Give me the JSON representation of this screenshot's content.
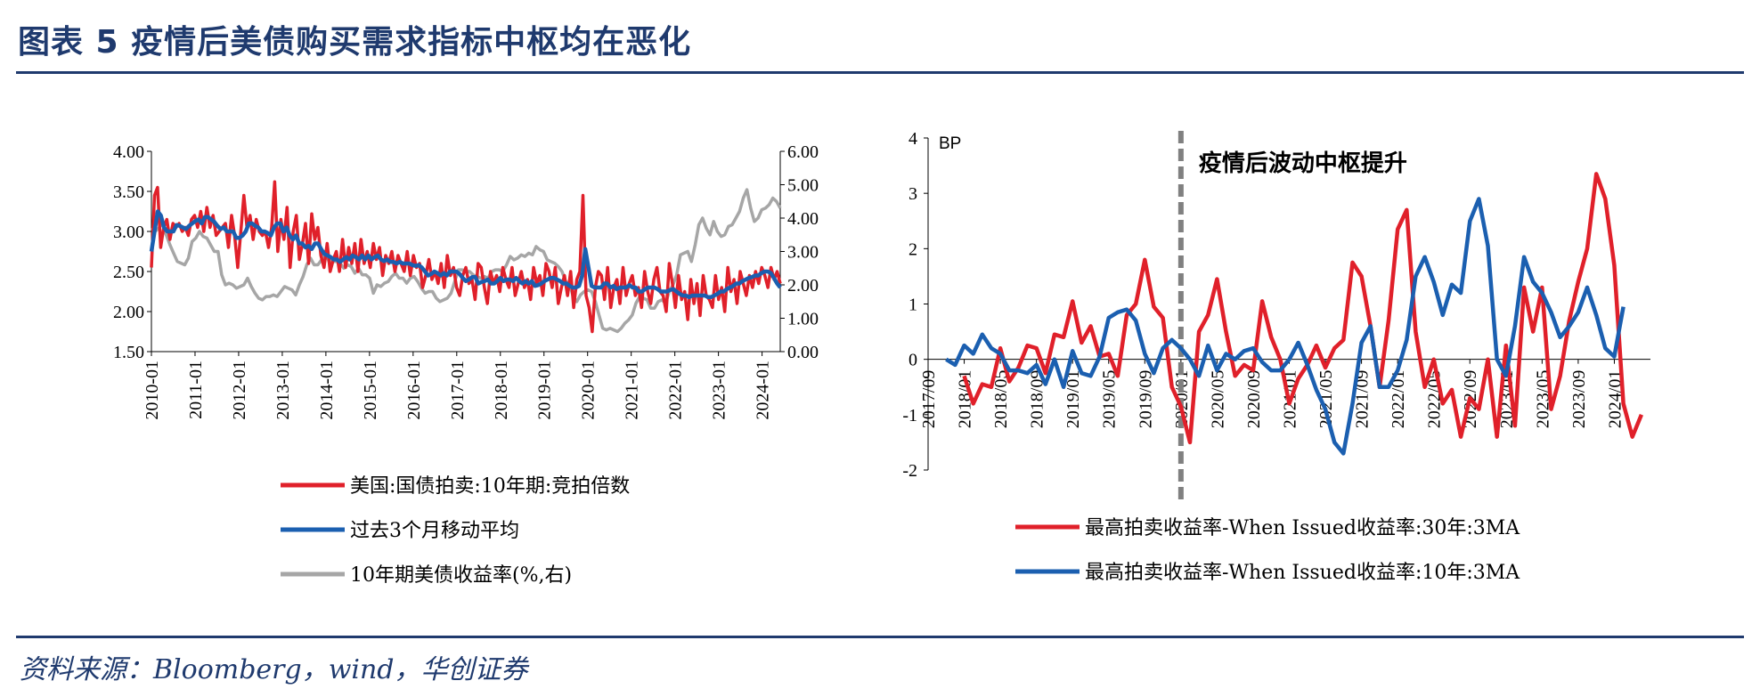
{
  "header": {
    "title": "图表 5   疫情后美债购买需求指标中枢均在恶化"
  },
  "footer": {
    "source": "资料来源：Bloomberg，wind，华创证券"
  },
  "chart_data": [
    {
      "type": "line",
      "title": "",
      "x_dates_start": "2010-01",
      "x_dates_end": "2024-06",
      "x_ticks": [
        "2010-01",
        "2011-01",
        "2012-01",
        "2013-01",
        "2014-01",
        "2015-01",
        "2016-01",
        "2017-01",
        "2018-01",
        "2019-01",
        "2020-01",
        "2021-01",
        "2022-01",
        "2023-01",
        "2024-01"
      ],
      "y_left_ticks": [
        "4.00",
        "3.50",
        "3.00",
        "2.50",
        "2.00",
        "1.50"
      ],
      "y_left_range": [
        1.5,
        4.0
      ],
      "y_right_ticks": [
        "6.00",
        "5.00",
        "4.00",
        "3.00",
        "2.00",
        "1.00",
        "0.00"
      ],
      "y_right_range": [
        0,
        6
      ],
      "series": [
        {
          "name": "美国:国债拍卖:10年期:竞拍倍数",
          "color": "#e0202a",
          "axis": "left",
          "values": [
            2.55,
            3.45,
            3.55,
            2.8,
            3.05,
            3.15,
            2.9,
            3.1,
            3.05,
            3.1,
            3.0,
            3.05,
            2.95,
            3.15,
            3.2,
            3.05,
            3.25,
            3.0,
            3.3,
            3.05,
            3.2,
            2.95,
            3.0,
            3.05,
            3.1,
            2.8,
            3.2,
            2.95,
            2.55,
            3.0,
            3.45,
            3.05,
            3.2,
            2.9,
            3.15,
            3.0,
            2.95,
            3.0,
            2.8,
            3.05,
            3.62,
            2.75,
            3.15,
            2.9,
            3.3,
            2.55,
            3.0,
            3.2,
            2.65,
            2.85,
            3.1,
            2.6,
            3.22,
            2.9,
            3.05,
            2.7,
            2.55,
            2.85,
            2.5,
            2.65,
            2.75,
            2.5,
            2.9,
            2.55,
            2.8,
            2.6,
            2.85,
            2.5,
            2.9,
            2.6,
            2.75,
            2.55,
            2.85,
            2.65,
            2.8,
            2.45,
            2.7,
            2.6,
            2.75,
            2.5,
            2.7,
            2.6,
            2.5,
            2.75,
            2.45,
            2.7,
            2.55,
            2.6,
            2.3,
            2.45,
            2.65,
            2.4,
            2.5,
            2.35,
            2.6,
            2.3,
            2.7,
            2.45,
            2.55,
            2.3,
            2.2,
            2.45,
            2.55,
            2.35,
            2.4,
            2.15,
            2.6,
            2.55,
            2.3,
            2.1,
            2.5,
            2.35,
            2.45,
            2.25,
            2.55,
            2.4,
            2.3,
            2.55,
            2.2,
            2.35,
            2.5,
            2.3,
            2.4,
            2.15,
            2.55,
            2.35,
            2.45,
            2.2,
            2.6,
            2.5,
            2.3,
            2.55,
            2.1,
            2.3,
            2.45,
            2.2,
            2.5,
            2.05,
            2.4,
            2.5,
            3.45,
            2.2,
            2.05,
            1.75,
            2.3,
            2.5,
            2.45,
            2.15,
            2.55,
            2.05,
            2.3,
            2.4,
            2.1,
            2.55,
            2.2,
            2.35,
            2.45,
            2.2,
            2.3,
            2.05,
            2.5,
            2.25,
            2.1,
            2.4,
            2.55,
            2.25,
            2.2,
            2.0,
            2.6,
            2.35,
            2.05,
            2.45,
            2.15,
            2.25,
            1.9,
            2.4,
            2.1,
            2.35,
            1.95,
            2.45,
            2.2,
            2.15,
            2.05,
            2.45,
            2.15,
            2.3,
            2.0,
            2.55,
            2.25,
            2.4,
            2.1,
            2.5,
            2.35,
            2.2,
            2.45,
            2.3,
            2.5,
            2.35,
            2.55,
            2.45,
            2.3,
            2.55,
            2.4,
            2.5,
            2.35
          ]
        },
        {
          "name": "过去3个月移动平均",
          "color": "#1b5fb0",
          "axis": "left",
          "values": [
            2.75,
            3.0,
            3.25,
            3.2,
            3.05,
            3.0,
            3.0,
            3.0,
            3.08,
            3.07,
            3.05,
            3.03,
            3.07,
            3.1,
            3.13,
            3.15,
            3.1,
            3.18,
            3.18,
            3.15,
            3.12,
            3.07,
            3.03,
            3.05,
            3.0,
            3.0,
            3.0,
            2.92,
            2.92,
            2.95,
            3.0,
            3.1,
            3.1,
            3.07,
            3.05,
            3.0,
            3.0,
            2.98,
            2.95,
            3.05,
            3.1,
            3.1,
            3.0,
            3.05,
            2.95,
            2.9,
            2.95,
            2.85,
            2.85,
            2.8,
            2.82,
            2.78,
            2.85,
            2.85,
            2.78,
            2.72,
            2.7,
            2.68,
            2.65,
            2.65,
            2.62,
            2.65,
            2.68,
            2.65,
            2.7,
            2.68,
            2.65,
            2.7,
            2.65,
            2.7,
            2.65,
            2.68,
            2.7,
            2.65,
            2.63,
            2.65,
            2.62,
            2.62,
            2.6,
            2.62,
            2.6,
            2.6,
            2.6,
            2.58,
            2.57,
            2.58,
            2.55,
            2.5,
            2.45,
            2.47,
            2.5,
            2.48,
            2.45,
            2.48,
            2.45,
            2.5,
            2.5,
            2.5,
            2.47,
            2.42,
            2.38,
            2.4,
            2.43,
            2.43,
            2.35,
            2.37,
            2.38,
            2.4,
            2.35,
            2.35,
            2.38,
            2.42,
            2.38,
            2.4,
            2.4,
            2.38,
            2.42,
            2.38,
            2.35,
            2.38,
            2.35,
            2.38,
            2.32,
            2.33,
            2.35,
            2.38,
            2.4,
            2.42,
            2.42,
            2.4,
            2.38,
            2.35,
            2.35,
            2.32,
            2.3,
            2.3,
            2.32,
            2.45,
            2.78,
            2.55,
            2.32,
            2.3,
            2.3,
            2.3,
            2.35,
            2.35,
            2.3,
            2.32,
            2.28,
            2.3,
            2.3,
            2.3,
            2.33,
            2.3,
            2.3,
            2.25,
            2.25,
            2.28,
            2.3,
            2.3,
            2.3,
            2.28,
            2.25,
            2.25,
            2.25,
            2.27,
            2.28,
            2.25,
            2.22,
            2.2,
            2.2,
            2.18,
            2.2,
            2.2,
            2.2,
            2.2,
            2.2,
            2.18,
            2.18,
            2.2,
            2.22,
            2.25,
            2.25,
            2.28,
            2.3,
            2.32,
            2.35,
            2.35,
            2.38,
            2.4,
            2.42,
            2.43,
            2.45,
            2.45,
            2.48,
            2.5,
            2.5,
            2.48,
            2.42,
            2.35,
            2.3
          ]
        },
        {
          "name": "10年期美债收益率(%,右)",
          "color": "#a6a6a6",
          "axis": "right",
          "values": [
            3.7,
            3.6,
            3.7,
            3.85,
            3.5,
            3.2,
            2.95,
            2.7,
            2.65,
            2.6,
            2.8,
            3.3,
            3.4,
            3.6,
            3.45,
            3.4,
            3.2,
            3.0,
            3.0,
            2.3,
            2.0,
            2.05,
            2.0,
            1.9,
            1.95,
            2.0,
            2.2,
            1.95,
            1.75,
            1.6,
            1.55,
            1.65,
            1.65,
            1.7,
            1.65,
            1.8,
            1.95,
            1.9,
            1.85,
            1.7,
            2.0,
            2.25,
            2.6,
            2.8,
            2.6,
            2.6,
            2.75,
            3.0,
            2.7,
            2.7,
            2.7,
            2.65,
            2.5,
            2.6,
            2.55,
            2.35,
            2.5,
            2.3,
            2.3,
            2.2,
            1.75,
            2.0,
            1.95,
            2.05,
            2.1,
            2.25,
            2.35,
            2.2,
            2.2,
            2.05,
            2.2,
            2.25,
            2.1,
            1.9,
            1.75,
            1.8,
            1.8,
            1.6,
            1.5,
            1.55,
            1.6,
            1.75,
            2.1,
            2.45,
            2.45,
            2.4,
            2.4,
            2.3,
            2.25,
            2.2,
            2.25,
            2.2,
            2.4,
            2.45,
            2.45,
            2.4,
            2.6,
            2.85,
            2.75,
            2.8,
            2.9,
            2.85,
            2.95,
            2.9,
            3.15,
            3.05,
            3.0,
            2.75,
            2.7,
            2.65,
            2.55,
            2.4,
            2.1,
            2.05,
            1.65,
            1.5,
            1.7,
            1.8,
            1.85,
            1.8,
            1.5,
            1.1,
            0.7,
            0.65,
            0.7,
            0.65,
            0.6,
            0.7,
            0.85,
            0.95,
            1.1,
            1.45,
            1.65,
            1.6,
            1.55,
            1.3,
            1.3,
            1.5,
            1.55,
            1.45,
            1.8,
            2.0,
            2.3,
            2.9,
            2.95,
            3.0,
            2.7,
            3.2,
            3.8,
            4.0,
            3.7,
            3.5,
            3.9,
            3.6,
            3.45,
            3.5,
            3.75,
            3.8,
            4.0,
            4.2,
            4.6,
            4.85,
            4.3,
            3.9,
            4.0,
            4.25,
            4.3,
            4.4,
            4.6,
            4.5,
            4.3
          ]
        }
      ],
      "legend": [
        {
          "label": "美国:国债拍卖:10年期:竞拍倍数",
          "color": "#e0202a"
        },
        {
          "label": "过去3个月移动平均",
          "color": "#1b5fb0"
        },
        {
          "label": "10年期美债收益率(%,右)",
          "color": "#a6a6a6"
        }
      ]
    },
    {
      "type": "line",
      "title": "",
      "ylabel": "BP",
      "x_dates_start": "2017-09",
      "x_dates_end": "2024-05",
      "x_ticks": [
        "2017/09",
        "2018/01",
        "2018/05",
        "2018/09",
        "2019/01",
        "2019/05",
        "2019/09",
        "2020/01",
        "2020/05",
        "2020/09",
        "2021/01",
        "2021/05",
        "2021/09",
        "2022/01",
        "2022/05",
        "2022/09",
        "2023/01",
        "2023/05",
        "2023/09",
        "2024/01"
      ],
      "y_ticks": [
        "4",
        "3",
        "2",
        "1",
        "0",
        "-1",
        "-2"
      ],
      "ylim": [
        -2,
        4
      ],
      "annotation": "疫情后波动中枢提升",
      "vline_date": "2020/01",
      "series": [
        {
          "name": "最高拍卖收益率-When Issued收益率:30年:3MA",
          "color": "#e0202a",
          "start": "2018/01",
          "values": [
            -0.3,
            -0.8,
            -0.45,
            -0.5,
            0.2,
            -0.4,
            -0.15,
            0.25,
            0.2,
            -0.25,
            0.45,
            0.4,
            1.05,
            0.3,
            0.6,
            0.05,
            0.1,
            -0.3,
            0.8,
            1.0,
            1.8,
            0.95,
            0.75,
            -0.5,
            -0.85,
            -1.5,
            0.5,
            0.8,
            1.45,
            0.5,
            -0.3,
            -0.1,
            -0.2,
            1.05,
            0.4,
            0.0,
            -0.8,
            -0.35,
            -0.1,
            0.25,
            -0.15,
            0.2,
            0.35,
            1.75,
            1.5,
            0.6,
            -0.5,
            0.7,
            2.35,
            2.7,
            0.5,
            -0.5,
            0.0,
            -0.8,
            -0.55,
            -1.4,
            -0.7,
            -0.9,
            0.0,
            -1.4,
            0.25,
            -1.2,
            1.3,
            0.5,
            1.3,
            -0.9,
            -0.3,
            0.7,
            1.4,
            2.0,
            3.35,
            2.9,
            1.7,
            -0.8,
            -1.4,
            -1.0
          ]
        },
        {
          "name": "最高拍卖收益率-When Issued收益率:10年:3MA",
          "color": "#1b5fb0",
          "start": "2017/11",
          "values": [
            0.0,
            -0.1,
            0.25,
            0.1,
            0.45,
            0.2,
            0.1,
            -0.2,
            -0.2,
            -0.25,
            -0.1,
            -0.45,
            0.0,
            -0.5,
            0.15,
            -0.25,
            -0.3,
            0.05,
            0.75,
            0.85,
            0.9,
            0.7,
            0.1,
            -0.25,
            0.2,
            0.35,
            0.2,
            0.0,
            -0.3,
            0.25,
            -0.2,
            0.1,
            0.0,
            0.15,
            0.2,
            -0.05,
            -0.2,
            -0.2,
            0.0,
            0.3,
            -0.1,
            -0.55,
            -0.9,
            -1.5,
            -1.7,
            -0.8,
            0.3,
            0.6,
            -0.5,
            -0.5,
            -0.2,
            0.35,
            1.5,
            1.85,
            1.4,
            0.8,
            1.35,
            1.2,
            2.5,
            2.9,
            2.05,
            0.0,
            -0.3,
            0.6,
            1.85,
            1.4,
            1.2,
            0.85,
            0.4,
            0.6,
            0.85,
            1.3,
            0.8,
            0.2,
            0.05,
            0.95
          ]
        }
      ],
      "legend": [
        {
          "label": "最高拍卖收益率-When Issued收益率:30年:3MA",
          "color": "#e0202a"
        },
        {
          "label": "最高拍卖收益率-When Issued收益率:10年:3MA",
          "color": "#1b5fb0"
        }
      ]
    }
  ]
}
